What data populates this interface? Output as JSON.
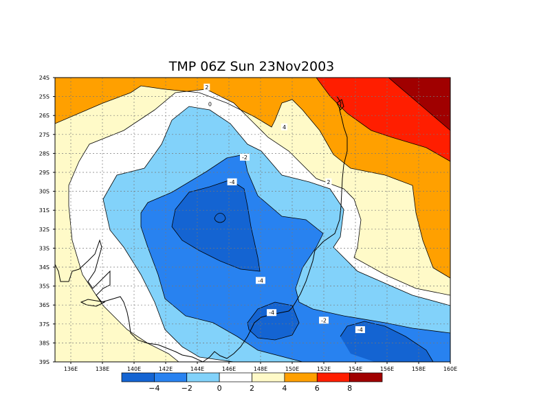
{
  "map": {
    "title": "TMP 06Z Sun 23Nov2003",
    "lat_labels": [
      "24S",
      "25S",
      "26S",
      "27S",
      "28S",
      "29S",
      "30S",
      "31S",
      "32S",
      "33S",
      "34S",
      "35S",
      "36S",
      "37S",
      "38S",
      "39S"
    ],
    "lon_labels": [
      "136E",
      "138E",
      "140E",
      "142E",
      "144E",
      "146E",
      "148E",
      "150E",
      "152E",
      "154E",
      "156E",
      "158E",
      "160E"
    ],
    "contour_labels": [
      {
        "text": "2",
        "lon": 144.6,
        "lat": -24.5
      },
      {
        "text": "0",
        "lon": 144.8,
        "lat": -25.4
      },
      {
        "text": "4",
        "lon": 149.5,
        "lat": -26.6
      },
      {
        "text": "-2",
        "lon": 147.0,
        "lat": -28.2
      },
      {
        "text": "-4",
        "lon": 146.2,
        "lat": -29.5
      },
      {
        "text": "2",
        "lon": 152.3,
        "lat": -29.5
      },
      {
        "text": "-4",
        "lon": 148.0,
        "lat": -34.7
      },
      {
        "text": "-4",
        "lon": 148.7,
        "lat": -36.4
      },
      {
        "text": "-2",
        "lon": 152.0,
        "lat": -36.8
      },
      {
        "text": "-4",
        "lon": 154.3,
        "lat": -37.3
      }
    ]
  },
  "colorbar": {
    "colors": [
      "#1464d2",
      "#2882f0",
      "#82d2fa",
      "#ffffff",
      "#fffac8",
      "#ffa000",
      "#ff1e00",
      "#a00000"
    ],
    "labels": [
      "-4",
      "-2",
      "0",
      "2",
      "4",
      "6",
      "8"
    ]
  }
}
